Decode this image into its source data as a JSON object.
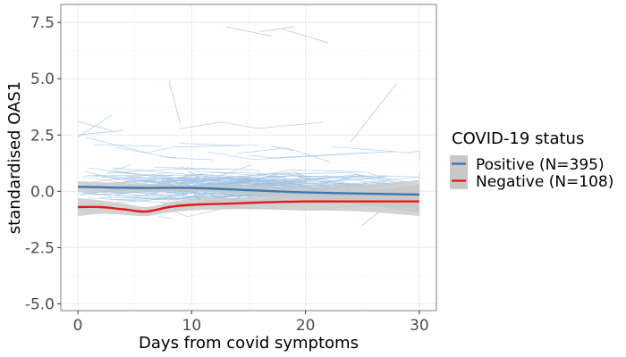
{
  "chart_data": {
    "type": "line",
    "xlabel": "Days from covid symptoms",
    "ylabel": "standardised OAS1",
    "xlim": [
      -1.5,
      31.5
    ],
    "ylim": [
      -5.3,
      8.3
    ],
    "x_ticks": [
      0,
      10,
      20,
      30
    ],
    "x_tick_labels": [
      "0",
      "10",
      "20",
      "30"
    ],
    "y_ticks": [
      -5.0,
      -2.5,
      0.0,
      2.5,
      5.0,
      7.5
    ],
    "y_tick_labels": [
      "-5.0",
      "-2.5",
      "0.0",
      "2.5",
      "5.0",
      "7.5"
    ],
    "grid": true,
    "legend": {
      "title": "COVID-19 status",
      "placement": "right"
    },
    "series": [
      {
        "name": "Positive (N=395)",
        "color": "#3a78b0",
        "x": [
          0,
          5,
          10,
          15,
          20,
          25,
          30
        ],
        "y": [
          0.2,
          0.15,
          0.15,
          0.05,
          -0.05,
          -0.1,
          -0.15
        ],
        "ci_lower": [
          -0.05,
          -0.05,
          0.0,
          -0.15,
          -0.35,
          -0.6,
          -0.95
        ],
        "ci_upper": [
          0.45,
          0.35,
          0.3,
          0.25,
          0.2,
          0.3,
          0.5
        ]
      },
      {
        "name": "Negative (N=108)",
        "color": "#e31a1c",
        "x": [
          0,
          2,
          4,
          6,
          8,
          10,
          13,
          16,
          20,
          25,
          30
        ],
        "y": [
          -0.7,
          -0.7,
          -0.8,
          -0.9,
          -0.7,
          -0.6,
          -0.55,
          -0.5,
          -0.45,
          -0.45,
          -0.45
        ],
        "ci_lower": [
          -1.1,
          -1.0,
          -1.05,
          -1.1,
          -0.95,
          -0.85,
          -0.8,
          -0.8,
          -0.85,
          -0.9,
          -1.1
        ],
        "ci_upper": [
          -0.3,
          -0.4,
          -0.55,
          -0.7,
          -0.5,
          -0.35,
          -0.3,
          -0.25,
          -0.1,
          0.0,
          0.3
        ]
      }
    ]
  },
  "colors": {
    "ci_band": "#c8c8c8",
    "individual_lines": "#9ec1e0",
    "grid_major": "#ebebeb",
    "grid_minor": "#f5f5f5",
    "panel_border": "#7f7f7f"
  }
}
